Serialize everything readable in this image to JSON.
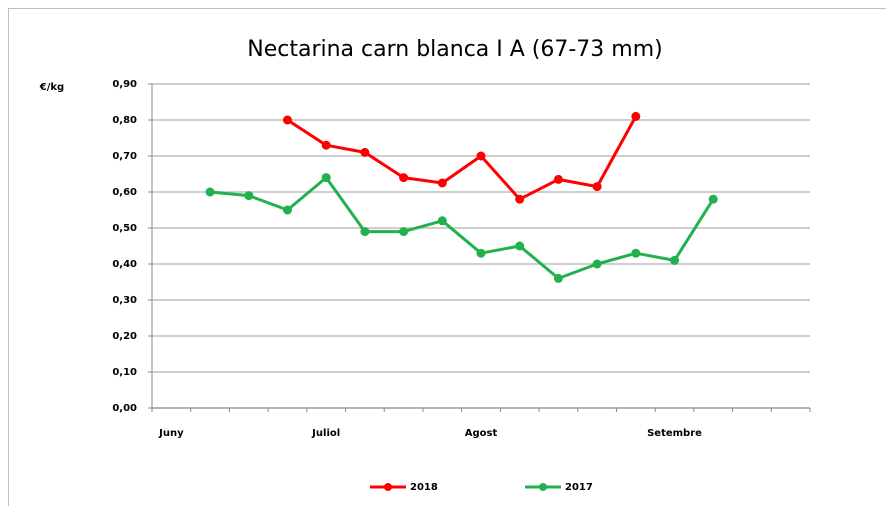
{
  "chart_data": {
    "type": "line",
    "title": "Nectarina carn blanca I A (67-73 mm)",
    "y_label": "€/kg",
    "categories": [
      "Juny",
      null,
      null,
      null,
      "Juliol",
      null,
      null,
      null,
      "Agost",
      null,
      null,
      null,
      null,
      "Setembre",
      null,
      null,
      null
    ],
    "series": [
      {
        "name": "2018",
        "color": "#ff0000",
        "values": [
          null,
          null,
          null,
          0.8,
          0.73,
          0.71,
          0.64,
          0.625,
          0.7,
          0.58,
          0.635,
          0.615,
          0.81,
          null,
          null,
          null,
          null
        ]
      },
      {
        "name": "2017",
        "color": "#22b14c",
        "values": [
          null,
          0.6,
          0.59,
          0.55,
          0.64,
          0.49,
          0.49,
          0.52,
          0.43,
          0.45,
          0.36,
          0.4,
          0.43,
          0.41,
          0.58,
          null,
          null
        ]
      }
    ],
    "ylim": [
      0,
      0.9
    ],
    "yticks": [
      {
        "value": 0,
        "label": "0,00"
      },
      {
        "value": 0.1,
        "label": "0,10"
      },
      {
        "value": 0.2,
        "label": "0,20"
      },
      {
        "value": 0.3,
        "label": "0,30"
      },
      {
        "value": 0.4,
        "label": "0,40"
      },
      {
        "value": 0.5,
        "label": "0,50"
      },
      {
        "value": 0.6,
        "label": "0,60"
      },
      {
        "value": 0.7,
        "label": "0,70"
      },
      {
        "value": 0.8,
        "label": "0,80"
      },
      {
        "value": 0.9,
        "label": "0,90"
      }
    ],
    "grid": true,
    "legend": "bottom"
  }
}
